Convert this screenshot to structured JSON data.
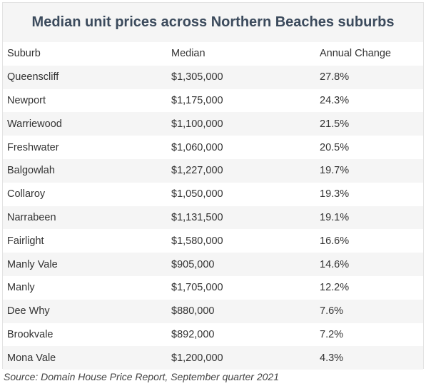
{
  "chart_data": {
    "type": "table",
    "title": "Median unit prices across Northern Beaches suburbs",
    "columns": [
      "Suburb",
      "Median",
      "Annual Change"
    ],
    "rows": [
      [
        "Queenscliff",
        "$1,305,000",
        "27.8%"
      ],
      [
        "Newport",
        "$1,175,000",
        "24.3%"
      ],
      [
        "Warriewood",
        "$1,100,000",
        "21.5%"
      ],
      [
        "Freshwater",
        "$1,060,000",
        "20.5%"
      ],
      [
        "Balgowlah",
        "$1,227,000",
        "19.7%"
      ],
      [
        "Collaroy",
        "$1,050,000",
        "19.3%"
      ],
      [
        "Narrabeen",
        "$1,131,500",
        "19.1%"
      ],
      [
        "Fairlight",
        "$1,580,000",
        "16.6%"
      ],
      [
        "Manly Vale",
        "$905,000",
        "14.6%"
      ],
      [
        "Manly",
        "$1,705,000",
        "12.2%"
      ],
      [
        "Dee Why",
        "$880,000",
        "7.6%"
      ],
      [
        "Brookvale",
        "$892,000",
        "7.2%"
      ],
      [
        "Mona Vale",
        "$1,200,000",
        "4.3%"
      ]
    ],
    "source": "Source: Domain House Price Report, September quarter 2021"
  },
  "colors": {
    "title_text": "#3b4a5c",
    "stripe": "#f5f5f5",
    "text": "#333333"
  }
}
